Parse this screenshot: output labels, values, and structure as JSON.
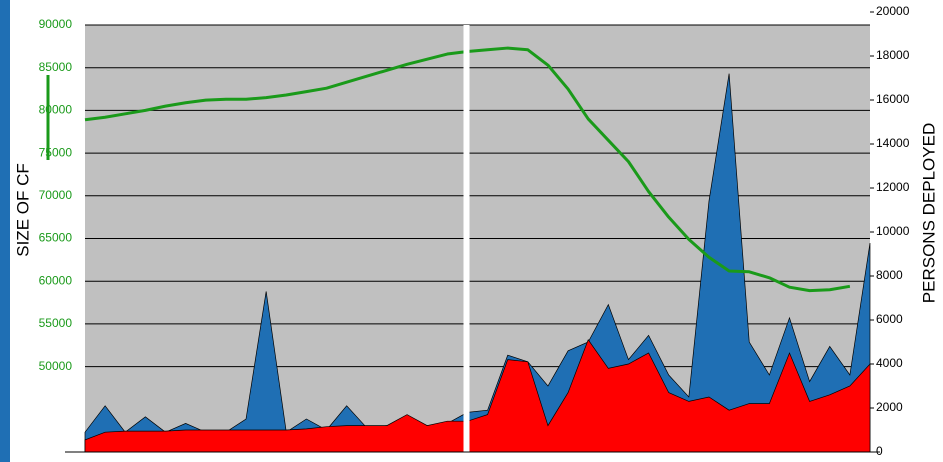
{
  "chart_data": {
    "type": "area-line",
    "y_label": "SIZE OF CF",
    "y2_label": "PERSONS DEPLOYED",
    "x": [
      0,
      1,
      2,
      3,
      4,
      5,
      6,
      7,
      8,
      9,
      10,
      11,
      12,
      13,
      14,
      15,
      16,
      17,
      18,
      19,
      20,
      21,
      22,
      23,
      24,
      25,
      26,
      27,
      28,
      29,
      30,
      31,
      32,
      33,
      34,
      35,
      36,
      37,
      38,
      39
    ],
    "xlim": [
      0,
      39
    ],
    "ylim": [
      40000,
      90000
    ],
    "yticks": [
      50000,
      55000,
      60000,
      65000,
      70000,
      75000,
      80000,
      85000,
      90000
    ],
    "y2lim": [
      0,
      20000
    ],
    "y2ticks": [
      0,
      2000,
      4000,
      6000,
      8000,
      10000,
      12000,
      14000,
      16000,
      18000,
      20000
    ],
    "grid": true,
    "series": [
      {
        "kind": "area",
        "axis": "y2",
        "color": "#1f6fb4",
        "values": [
          900,
          2100,
          900,
          1600,
          900,
          1300,
          900,
          900,
          1500,
          7300,
          900,
          1500,
          1000,
          2100,
          1100,
          1200,
          1200,
          1200,
          1300,
          1800,
          1900,
          4400,
          4100,
          3000,
          4600,
          5000,
          6700,
          4200,
          5300,
          3500,
          2500,
          11400,
          17200,
          5000,
          3500,
          6100,
          3200,
          4800,
          3500,
          9500
        ]
      },
      {
        "kind": "area",
        "axis": "y2",
        "color": "#ff0000",
        "values": [
          550,
          900,
          950,
          950,
          950,
          1000,
          1000,
          1000,
          1000,
          1000,
          1000,
          1050,
          1150,
          1200,
          1200,
          1200,
          1700,
          1200,
          1400,
          1400,
          1700,
          4200,
          4100,
          1200,
          2700,
          5100,
          3800,
          4000,
          4500,
          2700,
          2300,
          2500,
          1900,
          2200,
          2200,
          4500,
          2300,
          2600,
          3000,
          4000
        ]
      },
      {
        "kind": "line",
        "axis": "y",
        "color": "#1a9a1a",
        "values": [
          78900,
          79200,
          79600,
          80000,
          80500,
          80900,
          81200,
          81300,
          81300,
          81500,
          81800,
          82200,
          82600,
          83300,
          84000,
          84700,
          85400,
          86000,
          86600,
          86900,
          87100,
          87300,
          87100,
          85300,
          82500,
          79000,
          76500,
          74000,
          70500,
          67500,
          64900,
          62800,
          61200,
          61100,
          60400,
          59300,
          58900,
          59000,
          59400,
          null
        ]
      }
    ]
  }
}
